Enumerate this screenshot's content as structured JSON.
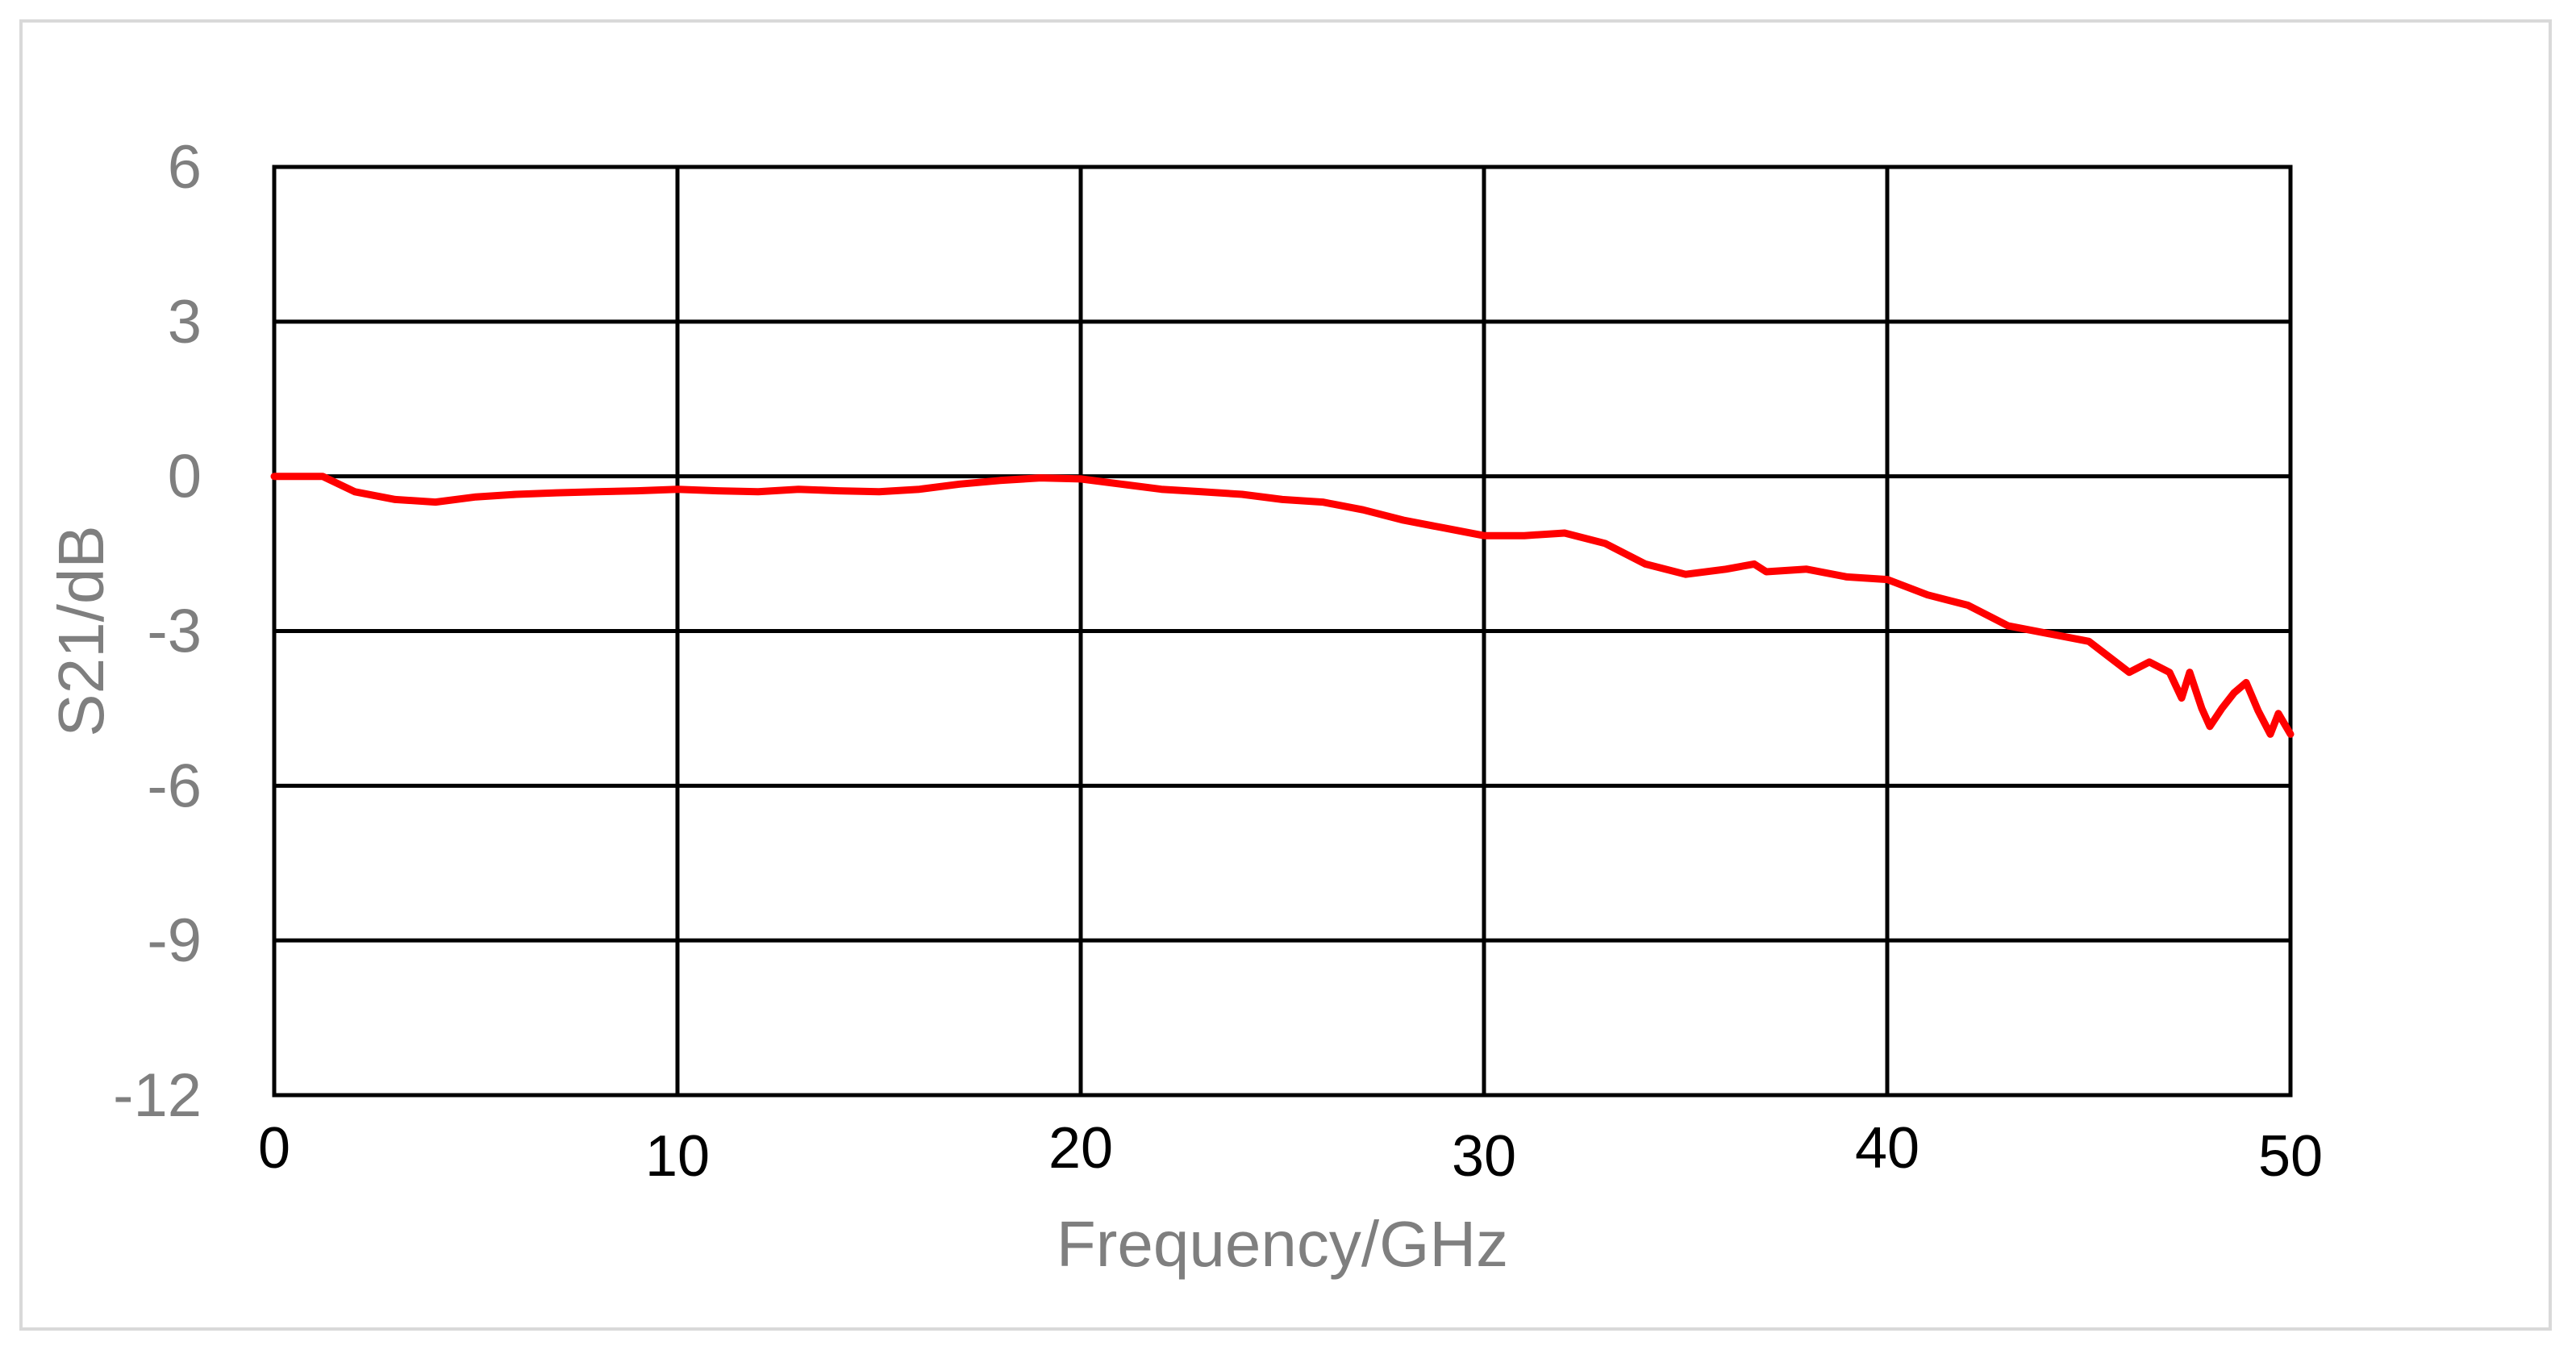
{
  "chart_data": {
    "type": "line",
    "title": "",
    "xlabel": "Frequency/GHz",
    "ylabel": "S21/dB",
    "xlim": [
      0,
      50
    ],
    "ylim": [
      -12,
      6
    ],
    "x_ticks": [
      "0",
      "10",
      "20",
      "30",
      "40",
      "50"
    ],
    "y_ticks": [
      "6",
      "3",
      "0",
      "-3",
      "-6",
      "-9",
      "-12"
    ],
    "grid": true,
    "legend": "none",
    "colors": {
      "line": "#ff0000",
      "grid": "#000000",
      "tick_text": "#7f7f7f",
      "frame": "#d9d9d9"
    },
    "series": [
      {
        "x": [
          0,
          1.2,
          2,
          3,
          4,
          5,
          6,
          7,
          8,
          9,
          10,
          11,
          12,
          13,
          14,
          15,
          16,
          17,
          18,
          19,
          20,
          21,
          22,
          23,
          24,
          25,
          26,
          27,
          28,
          29,
          30,
          31,
          32,
          33,
          34,
          35,
          36,
          36.7,
          37,
          38,
          39,
          40,
          41,
          42,
          43,
          44,
          45,
          45.5,
          46,
          46.5,
          47,
          47.3,
          47.5,
          47.8,
          48,
          48.3,
          48.6,
          48.9,
          49.2,
          49.5,
          49.7,
          50
        ],
        "y": [
          0,
          0,
          -0.3,
          -0.45,
          -0.5,
          -0.4,
          -0.35,
          -0.32,
          -0.3,
          -0.28,
          -0.25,
          -0.28,
          -0.3,
          -0.25,
          -0.28,
          -0.3,
          -0.25,
          -0.15,
          -0.08,
          -0.03,
          -0.05,
          -0.15,
          -0.25,
          -0.3,
          -0.35,
          -0.45,
          -0.5,
          -0.65,
          -0.85,
          -1.0,
          -1.15,
          -1.15,
          -1.1,
          -1.3,
          -1.7,
          -1.9,
          -1.8,
          -1.7,
          -1.85,
          -1.8,
          -1.95,
          -2.0,
          -2.3,
          -2.5,
          -2.9,
          -3.05,
          -3.2,
          -3.5,
          -3.8,
          -3.6,
          -3.8,
          -4.3,
          -3.8,
          -4.5,
          -4.85,
          -4.5,
          -4.2,
          -4.0,
          -4.55,
          -5.0,
          -4.6,
          -5.0
        ]
      }
    ]
  }
}
